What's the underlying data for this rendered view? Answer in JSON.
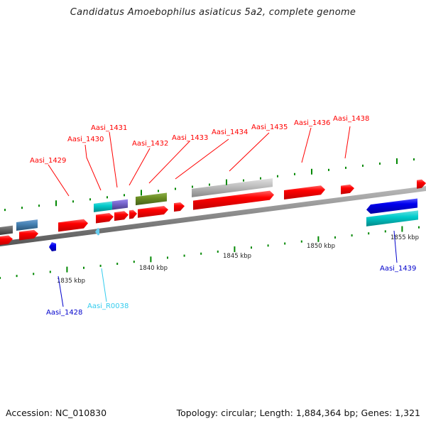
{
  "title": "Candidatus Amoebophilus asiaticus 5a2, complete genome",
  "footer": {
    "accession": "Accession: NC_010830",
    "summary": "Topology: circular; Length: 1,884,364 bp; Genes: 1,321"
  },
  "colors": {
    "forward_cds": "#ff0000",
    "reverse_cds": "#0000ee",
    "rna": "#33ccee",
    "backbone": "#888888",
    "ticks": "#008800",
    "gene_cyan": "#22cccc",
    "gene_purple": "#7766cc",
    "gene_olive": "#6b8e23",
    "gene_grey": "#bbbbbb",
    "gene_darkgrey": "#666666",
    "gene_steelblue": "#4682b4"
  },
  "scale": {
    "tick_labels": [
      "1835 kbp",
      "1840 kbp",
      "1845 kbp",
      "1850 kbp",
      "1855 kbp"
    ]
  },
  "gene_labels": {
    "forward": [
      "Aasi_1429",
      "Aasi_1430",
      "Aasi_1431",
      "Aasi_1432",
      "Aasi_1433",
      "Aasi_1434",
      "Aasi_1435",
      "Aasi_1436",
      "Aasi_1438"
    ],
    "reverse": [
      "Aasi_1428",
      "Aasi_R0038",
      "Aasi_1439"
    ]
  }
}
